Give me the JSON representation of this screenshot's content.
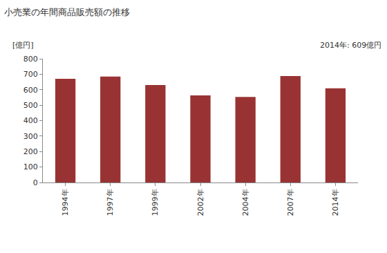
{
  "chart_data": {
    "type": "bar",
    "title": "小売業の年間商品販売額の推移",
    "y_label": "[億円]",
    "annotations": [
      {
        "text": "2014年: 609億円"
      }
    ],
    "categories": [
      "1994年",
      "1997年",
      "1999年",
      "2002年",
      "2004年",
      "2007年",
      "2014年"
    ],
    "values": [
      670,
      685,
      630,
      563,
      553,
      688,
      609
    ],
    "color": "#993333",
    "ylim": [
      0,
      800
    ],
    "yticks": [
      0,
      100,
      200,
      300,
      400,
      500,
      600,
      700,
      800
    ],
    "grid": false
  }
}
